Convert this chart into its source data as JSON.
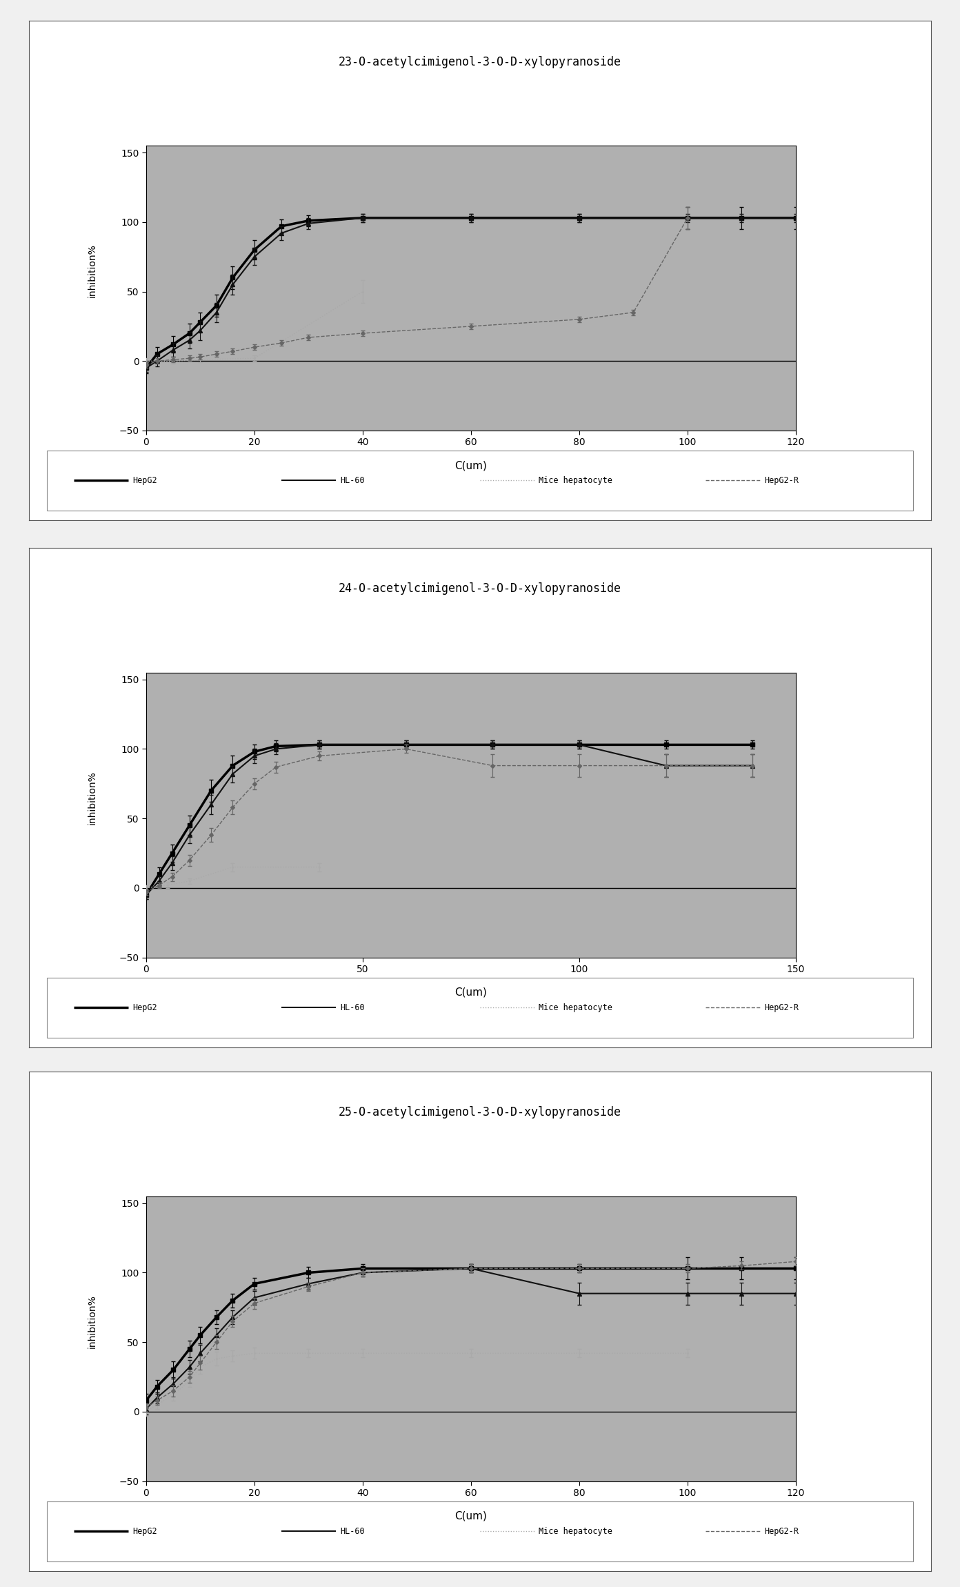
{
  "charts": [
    {
      "title": "23-O-acetylcimigenol-3-O-D-xylopyranoside",
      "xlabel": "C(um)",
      "ylabel": "inhibition%",
      "xlim": [
        0,
        120
      ],
      "ylim": [
        -50,
        155
      ],
      "xticks": [
        0,
        20,
        40,
        60,
        80,
        100,
        120
      ],
      "yticks": [
        -50,
        0,
        50,
        100,
        150
      ],
      "HepG2_x": [
        0,
        2,
        5,
        8,
        10,
        13,
        16,
        20,
        25,
        30,
        40,
        60,
        80,
        100,
        110,
        120
      ],
      "HepG2_y": [
        -5,
        5,
        12,
        20,
        28,
        40,
        60,
        80,
        97,
        101,
        103,
        103,
        103,
        103,
        103,
        103
      ],
      "HepG2_err": [
        4,
        5,
        6,
        7,
        7,
        8,
        8,
        7,
        5,
        4,
        3,
        3,
        3,
        8,
        8,
        8
      ],
      "HL60_x": [
        0,
        2,
        5,
        8,
        10,
        13,
        16,
        20,
        25,
        30,
        40,
        60,
        80,
        100,
        110,
        120
      ],
      "HL60_y": [
        -5,
        0,
        8,
        15,
        22,
        35,
        55,
        75,
        92,
        99,
        103,
        103,
        103,
        103,
        103,
        103
      ],
      "HL60_err": [
        3,
        4,
        5,
        6,
        7,
        7,
        7,
        6,
        5,
        4,
        3,
        3,
        3,
        3,
        3,
        3
      ],
      "Mice_x": [
        0,
        5,
        10,
        20,
        40
      ],
      "Mice_y": [
        0,
        0,
        1,
        2,
        50
      ],
      "Mice_err": [
        2,
        2,
        2,
        2,
        8
      ],
      "HepG2R_x": [
        0,
        2,
        5,
        8,
        10,
        13,
        16,
        20,
        25,
        30,
        40,
        60,
        80,
        90,
        100
      ],
      "HepG2R_y": [
        -3,
        0,
        1,
        2,
        3,
        5,
        7,
        10,
        13,
        17,
        20,
        25,
        30,
        35,
        103
      ],
      "HepG2R_err": [
        2,
        2,
        2,
        2,
        2,
        2,
        2,
        2,
        2,
        2,
        2,
        2,
        2,
        2,
        8
      ]
    },
    {
      "title": "24-O-acetylcimigenol-3-O-D-xylopyranoside",
      "xlabel": "C(um)",
      "ylabel": "inhibition%",
      "xlim": [
        0,
        150
      ],
      "ylim": [
        -50,
        155
      ],
      "xticks": [
        0,
        50,
        100,
        150
      ],
      "yticks": [
        -50,
        0,
        50,
        100,
        150
      ],
      "HepG2_x": [
        0,
        3,
        6,
        10,
        15,
        20,
        25,
        30,
        40,
        60,
        80,
        100,
        120,
        140
      ],
      "HepG2_y": [
        -5,
        10,
        25,
        45,
        70,
        88,
        98,
        102,
        103,
        103,
        103,
        103,
        103,
        103
      ],
      "HepG2_err": [
        3,
        5,
        6,
        7,
        8,
        7,
        5,
        4,
        3,
        3,
        3,
        3,
        3,
        3
      ],
      "HL60_x": [
        0,
        3,
        6,
        10,
        15,
        20,
        25,
        30,
        40,
        60,
        80,
        100,
        120,
        140
      ],
      "HL60_y": [
        -5,
        5,
        18,
        38,
        60,
        82,
        95,
        100,
        103,
        103,
        103,
        103,
        88,
        88
      ],
      "HL60_err": [
        3,
        4,
        5,
        6,
        7,
        6,
        5,
        4,
        3,
        3,
        3,
        3,
        8,
        8
      ],
      "Mice_x": [
        0,
        5,
        10,
        20,
        40
      ],
      "Mice_y": [
        0,
        2,
        5,
        15,
        15
      ],
      "Mice_err": [
        2,
        2,
        2,
        3,
        3
      ],
      "HepG2R_x": [
        0,
        3,
        6,
        10,
        15,
        20,
        25,
        30,
        40,
        60,
        80,
        100,
        120,
        140
      ],
      "HepG2R_y": [
        -3,
        2,
        8,
        20,
        38,
        58,
        75,
        87,
        95,
        100,
        88,
        88,
        88,
        88
      ],
      "HepG2R_err": [
        2,
        2,
        3,
        4,
        5,
        5,
        4,
        4,
        3,
        3,
        8,
        8,
        8,
        8
      ]
    },
    {
      "title": "25-O-acetylcimigenol-3-O-D-xylopyranoside",
      "xlabel": "C(um)",
      "ylabel": "inhibition%",
      "xlim": [
        0,
        120
      ],
      "ylim": [
        -50,
        155
      ],
      "xticks": [
        0,
        20,
        40,
        60,
        80,
        100,
        120
      ],
      "yticks": [
        -50,
        0,
        50,
        100,
        150
      ],
      "HepG2_x": [
        0,
        2,
        5,
        8,
        10,
        13,
        16,
        20,
        30,
        40,
        60,
        80,
        100,
        110,
        120
      ],
      "HepG2_y": [
        8,
        18,
        30,
        45,
        55,
        68,
        80,
        92,
        100,
        103,
        103,
        103,
        103,
        103,
        103
      ],
      "HepG2_err": [
        5,
        5,
        6,
        6,
        6,
        5,
        5,
        4,
        4,
        3,
        3,
        3,
        8,
        8,
        8
      ],
      "HL60_x": [
        0,
        2,
        5,
        8,
        10,
        13,
        16,
        20,
        30,
        40,
        60,
        80,
        100,
        110,
        120
      ],
      "HL60_y": [
        2,
        10,
        20,
        32,
        42,
        55,
        68,
        82,
        92,
        100,
        103,
        85,
        85,
        85,
        85
      ],
      "HL60_err": [
        4,
        4,
        5,
        5,
        6,
        5,
        5,
        5,
        4,
        3,
        3,
        8,
        8,
        8,
        8
      ],
      "Mice_x": [
        0,
        2,
        5,
        8,
        10,
        13,
        16,
        20,
        30,
        40,
        60,
        80,
        100
      ],
      "Mice_y": [
        0,
        5,
        12,
        22,
        32,
        38,
        40,
        42,
        42,
        42,
        42,
        42,
        42
      ],
      "Mice_err": [
        3,
        3,
        4,
        4,
        5,
        5,
        4,
        4,
        3,
        3,
        3,
        3,
        3
      ],
      "HepG2R_x": [
        0,
        2,
        5,
        8,
        10,
        13,
        16,
        20,
        30,
        40,
        60,
        80,
        100,
        110,
        120
      ],
      "HepG2R_y": [
        3,
        8,
        15,
        25,
        35,
        50,
        65,
        78,
        90,
        100,
        103,
        103,
        103,
        105,
        108
      ],
      "HepG2R_err": [
        3,
        3,
        4,
        4,
        5,
        5,
        4,
        4,
        3,
        3,
        3,
        3,
        3,
        3,
        3
      ]
    }
  ],
  "legend_labels": [
    "HepG2",
    "HL-60",
    "Mice hepatocyte",
    "HepG2-R"
  ],
  "plot_bg_color": "#b0b0b0",
  "paper_color": "#f0f0f0",
  "panel_border_color": "#888888",
  "lcolors": [
    "#000000",
    "#111111",
    "#aaaaaa",
    "#666666"
  ],
  "lstyles": [
    "-",
    "-",
    ":",
    "--"
  ],
  "lwidths": [
    2.5,
    1.5,
    1.0,
    1.0
  ],
  "lmarkers": [
    "s",
    "^",
    ".",
    "D"
  ],
  "lmsizes": [
    4,
    4,
    2,
    3
  ]
}
